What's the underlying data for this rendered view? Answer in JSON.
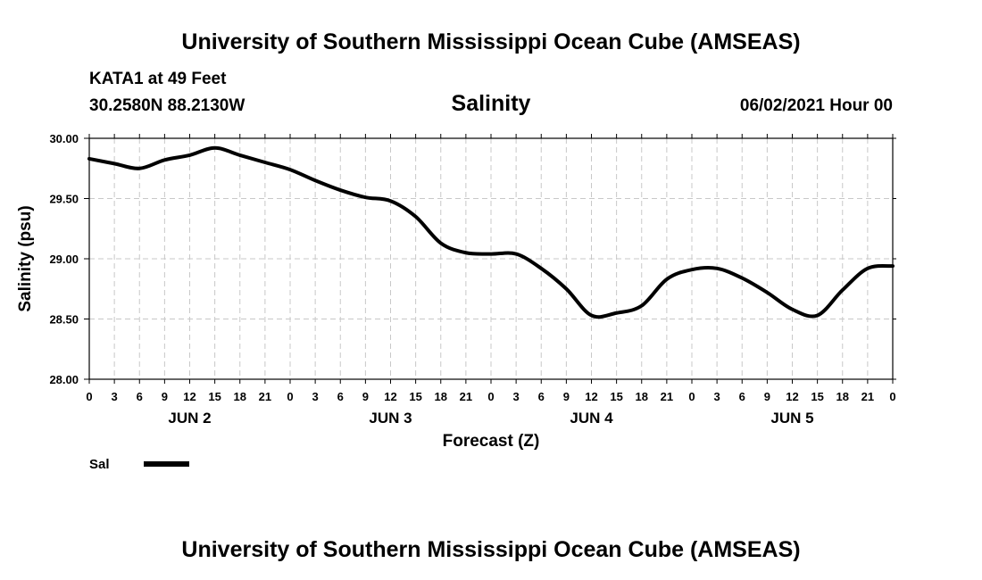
{
  "header": {
    "title_top": "University of Southern Mississippi Ocean Cube (AMSEAS)",
    "station": "KATA1 at 49 Feet",
    "coords": "30.2580N  88.2130W",
    "date": "06/02/2021 Hour 00",
    "title_bottom": "University of Southern Mississippi Ocean Cube (AMSEAS)"
  },
  "legend": {
    "label": "Sal",
    "color": "#000000"
  },
  "chart_data": {
    "type": "line",
    "title": "Salinity",
    "xlabel": "Forecast (Z)",
    "ylabel": "Salinity (psu)",
    "ylim": [
      28.0,
      30.0
    ],
    "xlim": [
      0,
      96
    ],
    "grid": true,
    "y_ticks": [
      "28.00",
      "28.50",
      "29.00",
      "29.50",
      "30.00"
    ],
    "y_tick_values": [
      28.0,
      28.5,
      29.0,
      29.5,
      30.0
    ],
    "x_tick_labels": [
      "0",
      "3",
      "6",
      "9",
      "12",
      "15",
      "18",
      "21",
      "0",
      "3",
      "6",
      "9",
      "12",
      "15",
      "18",
      "21",
      "0",
      "3",
      "6",
      "9",
      "12",
      "15",
      "18",
      "21",
      "0",
      "3",
      "6",
      "9",
      "12",
      "15",
      "18",
      "21",
      "0"
    ],
    "date_labels": [
      {
        "label": "JUN 2",
        "hour": 12
      },
      {
        "label": "JUN 3",
        "hour": 36
      },
      {
        "label": "JUN 4",
        "hour": 60
      },
      {
        "label": "JUN 5",
        "hour": 84
      }
    ],
    "series": [
      {
        "name": "Sal",
        "x": [
          0,
          3,
          6,
          9,
          12,
          15,
          18,
          21,
          24,
          27,
          30,
          33,
          36,
          39,
          42,
          45,
          48,
          51,
          54,
          57,
          60,
          63,
          66,
          69,
          72,
          75,
          78,
          81,
          84,
          87,
          90,
          93,
          96
        ],
        "values": [
          29.83,
          29.79,
          29.75,
          29.82,
          29.86,
          29.92,
          29.86,
          29.8,
          29.74,
          29.65,
          29.57,
          29.51,
          29.48,
          29.35,
          29.13,
          29.05,
          29.04,
          29.04,
          28.92,
          28.75,
          28.53,
          28.55,
          28.61,
          28.83,
          28.91,
          28.92,
          28.84,
          28.72,
          28.58,
          28.53,
          28.74,
          28.92,
          28.94
        ]
      }
    ]
  }
}
